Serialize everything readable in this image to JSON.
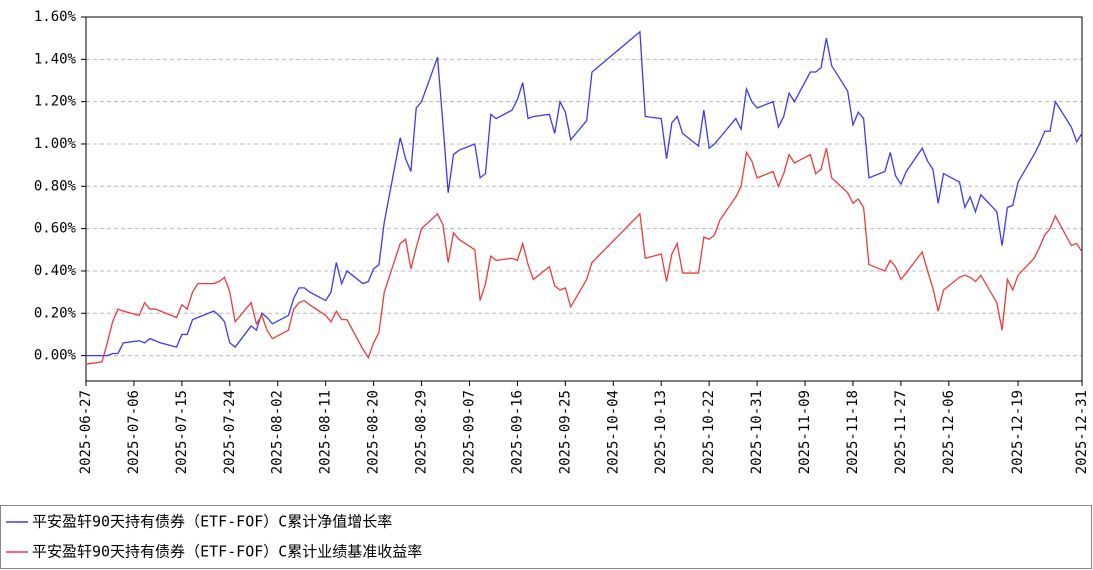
{
  "chart_data": {
    "type": "line",
    "x": [
      "2025-06-27",
      "2025-06-30",
      "2025-07-01",
      "2025-07-02",
      "2025-07-03",
      "2025-07-04",
      "2025-07-07",
      "2025-07-08",
      "2025-07-09",
      "2025-07-10",
      "2025-07-11",
      "2025-07-14",
      "2025-07-15",
      "2025-07-16",
      "2025-07-17",
      "2025-07-18",
      "2025-07-21",
      "2025-07-22",
      "2025-07-23",
      "2025-07-24",
      "2025-07-25",
      "2025-07-28",
      "2025-07-29",
      "2025-07-30",
      "2025-07-31",
      "2025-08-01",
      "2025-08-04",
      "2025-08-05",
      "2025-08-06",
      "2025-08-07",
      "2025-08-08",
      "2025-08-11",
      "2025-08-12",
      "2025-08-13",
      "2025-08-14",
      "2025-08-15",
      "2025-08-18",
      "2025-08-19",
      "2025-08-20",
      "2025-08-21",
      "2025-08-22",
      "2025-08-25",
      "2025-08-26",
      "2025-08-27",
      "2025-08-28",
      "2025-08-29",
      "2025-09-01",
      "2025-09-02",
      "2025-09-03",
      "2025-09-04",
      "2025-09-05",
      "2025-09-08",
      "2025-09-09",
      "2025-09-10",
      "2025-09-11",
      "2025-09-12",
      "2025-09-15",
      "2025-09-16",
      "2025-09-17",
      "2025-09-18",
      "2025-09-19",
      "2025-09-22",
      "2025-09-23",
      "2025-09-24",
      "2025-09-25",
      "2025-09-26",
      "2025-09-29",
      "2025-09-30",
      "2025-10-09",
      "2025-10-10",
      "2025-10-13",
      "2025-10-14",
      "2025-10-15",
      "2025-10-16",
      "2025-10-17",
      "2025-10-20",
      "2025-10-21",
      "2025-10-22",
      "2025-10-23",
      "2025-10-24",
      "2025-10-27",
      "2025-10-28",
      "2025-10-29",
      "2025-10-30",
      "2025-10-31",
      "2025-11-03",
      "2025-11-04",
      "2025-11-05",
      "2025-11-06",
      "2025-11-07",
      "2025-11-10",
      "2025-11-11",
      "2025-11-12",
      "2025-11-13",
      "2025-11-14",
      "2025-11-17",
      "2025-11-18",
      "2025-11-19",
      "2025-11-20",
      "2025-11-21",
      "2025-11-24",
      "2025-11-25",
      "2025-11-26",
      "2025-11-27",
      "2025-11-28",
      "2025-12-01",
      "2025-12-02",
      "2025-12-03",
      "2025-12-04",
      "2025-12-05",
      "2025-12-08",
      "2025-12-09",
      "2025-12-10",
      "2025-12-11",
      "2025-12-12",
      "2025-12-15",
      "2025-12-16",
      "2025-12-17",
      "2025-12-18",
      "2025-12-19",
      "2025-12-22",
      "2025-12-23",
      "2025-12-24",
      "2025-12-25",
      "2025-12-26",
      "2025-12-29",
      "2025-12-30",
      "2025-12-31"
    ],
    "series": [
      {
        "name": "平安盈轩90天持有债券（ETF-FOF）C累计净值增长率",
        "color": "#3b3bf0",
        "values": [
          0.0,
          0.0,
          0.0,
          0.01,
          0.01,
          0.06,
          0.07,
          0.06,
          0.08,
          0.07,
          0.06,
          0.04,
          0.1,
          0.1,
          0.17,
          0.18,
          0.21,
          0.19,
          0.16,
          0.06,
          0.04,
          0.14,
          0.12,
          0.2,
          0.18,
          0.15,
          0.19,
          0.27,
          0.32,
          0.32,
          0.3,
          0.26,
          0.3,
          0.44,
          0.34,
          0.4,
          0.34,
          0.35,
          0.41,
          0.43,
          0.63,
          1.03,
          0.93,
          0.87,
          1.17,
          1.2,
          1.41,
          1.1,
          0.77,
          0.95,
          0.97,
          1.0,
          0.84,
          0.86,
          1.14,
          1.12,
          1.16,
          1.21,
          1.29,
          1.12,
          1.13,
          1.14,
          1.05,
          1.2,
          1.15,
          1.02,
          1.11,
          1.34,
          1.53,
          1.13,
          1.12,
          0.93,
          1.1,
          1.13,
          1.05,
          0.99,
          1.16,
          0.98,
          1.0,
          1.03,
          1.12,
          1.07,
          1.26,
          1.2,
          1.17,
          1.2,
          1.08,
          1.13,
          1.24,
          1.2,
          1.34,
          1.34,
          1.36,
          1.5,
          1.37,
          1.25,
          1.09,
          1.15,
          1.12,
          0.84,
          0.87,
          0.96,
          0.85,
          0.81,
          0.87,
          0.98,
          0.92,
          0.88,
          0.72,
          0.86,
          0.82,
          0.7,
          0.75,
          0.68,
          0.76,
          0.68,
          0.52,
          0.7,
          0.71,
          0.82,
          0.95,
          1.0,
          1.06,
          1.06,
          1.2,
          1.08,
          1.01,
          1.05
        ]
      },
      {
        "name": "平安盈轩90天持有债券（ETF-FOF）C累计业绩基准收益率",
        "color": "#ee3b3b",
        "values": [
          -0.04,
          -0.03,
          0.06,
          0.16,
          0.22,
          0.21,
          0.19,
          0.25,
          0.22,
          0.22,
          0.21,
          0.18,
          0.24,
          0.22,
          0.3,
          0.34,
          0.34,
          0.35,
          0.37,
          0.3,
          0.16,
          0.25,
          0.15,
          0.19,
          0.12,
          0.08,
          0.12,
          0.22,
          0.25,
          0.26,
          0.24,
          0.19,
          0.16,
          0.21,
          0.17,
          0.17,
          0.03,
          -0.01,
          0.06,
          0.11,
          0.3,
          0.53,
          0.55,
          0.41,
          0.51,
          0.6,
          0.67,
          0.62,
          0.44,
          0.58,
          0.55,
          0.5,
          0.26,
          0.34,
          0.47,
          0.45,
          0.46,
          0.45,
          0.53,
          0.43,
          0.36,
          0.42,
          0.33,
          0.31,
          0.32,
          0.23,
          0.36,
          0.44,
          0.67,
          0.46,
          0.48,
          0.35,
          0.48,
          0.53,
          0.39,
          0.39,
          0.56,
          0.55,
          0.57,
          0.64,
          0.75,
          0.8,
          0.96,
          0.92,
          0.84,
          0.87,
          0.8,
          0.86,
          0.95,
          0.91,
          0.95,
          0.86,
          0.88,
          0.98,
          0.84,
          0.77,
          0.72,
          0.74,
          0.7,
          0.43,
          0.4,
          0.45,
          0.42,
          0.36,
          0.39,
          0.49,
          0.4,
          0.32,
          0.21,
          0.31,
          0.37,
          0.38,
          0.37,
          0.35,
          0.38,
          0.25,
          0.12,
          0.36,
          0.31,
          0.38,
          0.46,
          0.51,
          0.57,
          0.6,
          0.66,
          0.52,
          0.53,
          0.49
        ]
      }
    ],
    "xlim": [
      "2025-06-27",
      "2025-12-31"
    ],
    "xticks": [
      "2025-06-27",
      "2025-07-06",
      "2025-07-15",
      "2025-07-24",
      "2025-08-02",
      "2025-08-11",
      "2025-08-20",
      "2025-08-29",
      "2025-09-07",
      "2025-09-16",
      "2025-09-25",
      "2025-10-04",
      "2025-10-13",
      "2025-10-22",
      "2025-10-31",
      "2025-11-09",
      "2025-11-18",
      "2025-11-27",
      "2025-12-06",
      "2025-12-19",
      "2025-12-31"
    ],
    "ylim": [
      -0.12,
      1.6
    ],
    "yticks": [
      {
        "value": 0,
        "label": "0.00%"
      },
      {
        "value": 0.2,
        "label": "0.20%"
      },
      {
        "value": 0.4,
        "label": "0.40%"
      },
      {
        "value": 0.6,
        "label": "0.60%"
      },
      {
        "value": 0.8,
        "label": "0.80%"
      },
      {
        "value": 1.0,
        "label": "1.00%"
      },
      {
        "value": 1.2,
        "label": "1.20%"
      },
      {
        "value": 1.4,
        "label": "1.40%"
      },
      {
        "value": 1.6,
        "label": "1.60%"
      }
    ],
    "grid": true
  }
}
